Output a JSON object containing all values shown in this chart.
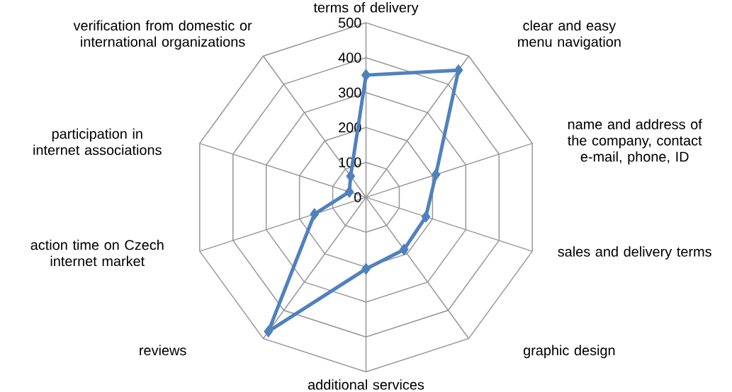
{
  "chart_data": {
    "type": "radar",
    "categories": [
      "terms of delivery",
      "clear and easy menu navigation",
      "name and address of the company, contact e-mail, phone, ID",
      "sales and delivery terms",
      "graphic design",
      "additional services",
      "reviews",
      "action time on Czech internet market",
      "participation in internet associations",
      "verification from domestic or international organizations"
    ],
    "series": [
      {
        "color": "#4f81bd",
        "values": [
          350,
          450,
          210,
          180,
          185,
          205,
          475,
          155,
          50,
          75
        ]
      }
    ],
    "ylim": [
      0,
      500
    ],
    "yticks": [
      0,
      100,
      200,
      300,
      400,
      500
    ],
    "grid": true,
    "marker": "diamond",
    "line_style": "solid"
  }
}
